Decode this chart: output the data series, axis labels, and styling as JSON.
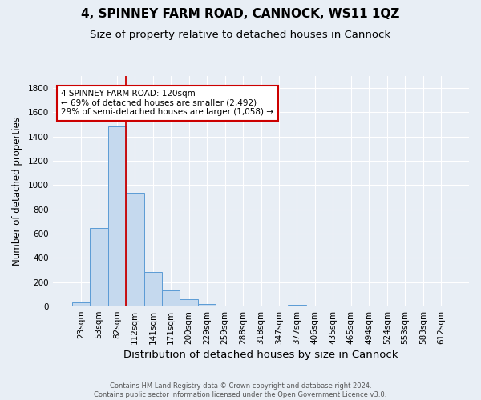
{
  "title": "4, SPINNEY FARM ROAD, CANNOCK, WS11 1QZ",
  "subtitle": "Size of property relative to detached houses in Cannock",
  "xlabel": "Distribution of detached houses by size in Cannock",
  "ylabel": "Number of detached properties",
  "footnote1": "Contains HM Land Registry data © Crown copyright and database right 2024.",
  "footnote2": "Contains public sector information licensed under the Open Government Licence v3.0.",
  "bar_labels": [
    "23sqm",
    "53sqm",
    "82sqm",
    "112sqm",
    "141sqm",
    "171sqm",
    "200sqm",
    "229sqm",
    "259sqm",
    "288sqm",
    "318sqm",
    "347sqm",
    "377sqm",
    "406sqm",
    "435sqm",
    "465sqm",
    "494sqm",
    "524sqm",
    "553sqm",
    "583sqm",
    "612sqm"
  ],
  "bar_values": [
    35,
    648,
    1484,
    938,
    284,
    130,
    60,
    22,
    10,
    5,
    4,
    3,
    15,
    2,
    0,
    0,
    0,
    0,
    0,
    0,
    0
  ],
  "bar_color": "#c5d9ee",
  "bar_edge_color": "#5b9bd5",
  "bar_edge_width": 0.7,
  "vline_color": "#cc0000",
  "vline_linewidth": 1.3,
  "annotation_text": "4 SPINNEY FARM ROAD: 120sqm\n← 69% of detached houses are smaller (2,492)\n29% of semi-detached houses are larger (1,058) →",
  "annotation_box_color": "#ffffff",
  "annotation_box_edge_color": "#cc0000",
  "annotation_box_edge_width": 1.5,
  "ylim": [
    0,
    1900
  ],
  "yticks": [
    0,
    200,
    400,
    600,
    800,
    1000,
    1200,
    1400,
    1600,
    1800
  ],
  "background_color": "#e8eef5",
  "plot_bg_color": "#e8eef5",
  "grid_color": "#ffffff",
  "title_fontsize": 11,
  "subtitle_fontsize": 9.5,
  "xlabel_fontsize": 9.5,
  "ylabel_fontsize": 8.5,
  "tick_fontsize": 7.5,
  "annotation_fontsize": 7.5,
  "footnote_fontsize": 6.0,
  "footnote_color": "#555555"
}
